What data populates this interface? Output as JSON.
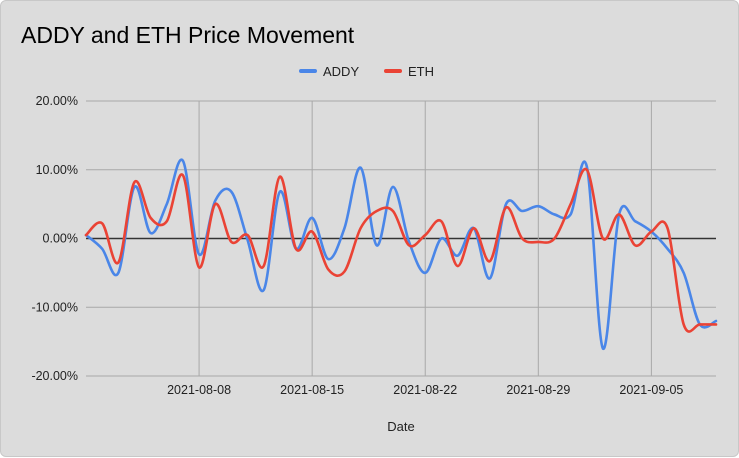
{
  "chart_data": {
    "type": "line",
    "title": "ADDY and ETH Price Movement",
    "xlabel": "Date",
    "ylabel": "",
    "ylim": [
      -20,
      20
    ],
    "yticks": [
      20,
      10,
      0,
      -10,
      -20
    ],
    "ytick_labels": [
      "20.00%",
      "10.00%",
      "0.00%",
      "-10.00%",
      "-20.00%"
    ],
    "x_start": "2021-08-01",
    "x_end": "2021-09-09",
    "xticks": [
      "2021-08-08",
      "2021-08-15",
      "2021-08-22",
      "2021-08-29",
      "2021-09-05"
    ],
    "legend": {
      "position": "top"
    },
    "grid": true,
    "x": [
      "2021-08-01",
      "2021-08-02",
      "2021-08-03",
      "2021-08-04",
      "2021-08-05",
      "2021-08-06",
      "2021-08-07",
      "2021-08-08",
      "2021-08-09",
      "2021-08-10",
      "2021-08-11",
      "2021-08-12",
      "2021-08-13",
      "2021-08-14",
      "2021-08-15",
      "2021-08-16",
      "2021-08-17",
      "2021-08-18",
      "2021-08-19",
      "2021-08-20",
      "2021-08-21",
      "2021-08-22",
      "2021-08-23",
      "2021-08-24",
      "2021-08-25",
      "2021-08-26",
      "2021-08-27",
      "2021-08-28",
      "2021-08-29",
      "2021-08-30",
      "2021-08-31",
      "2021-09-01",
      "2021-09-02",
      "2021-09-03",
      "2021-09-04",
      "2021-09-05",
      "2021-09-06",
      "2021-09-07",
      "2021-09-08",
      "2021-09-09"
    ],
    "series": [
      {
        "name": "ADDY",
        "color": "#4a86e8",
        "values": [
          0.5,
          -1.5,
          -5.0,
          7.5,
          0.8,
          5.0,
          11.3,
          -2.3,
          5.5,
          6.8,
          -0.2,
          -7.5,
          6.8,
          -1.5,
          3.0,
          -3.0,
          1.5,
          10.3,
          -1.0,
          7.5,
          -0.5,
          -5.0,
          0.0,
          -2.5,
          1.5,
          -5.8,
          5.0,
          4.0,
          4.7,
          3.5,
          3.5,
          10.5,
          -16.0,
          3.5,
          2.5,
          1.0,
          -1.5,
          -5.0,
          -12.5,
          -12.0
        ]
      },
      {
        "name": "ETH",
        "color": "#ea4335",
        "values": [
          0.5,
          2.2,
          -3.5,
          8.2,
          3.0,
          2.5,
          9.2,
          -4.2,
          5.0,
          -0.5,
          0.5,
          -4.0,
          9.0,
          -1.5,
          1.0,
          -4.5,
          -4.8,
          1.5,
          4.0,
          4.0,
          -1.0,
          0.5,
          2.5,
          -4.0,
          1.5,
          -3.3,
          4.5,
          0.0,
          -0.5,
          0.0,
          5.0,
          10.0,
          0.0,
          3.5,
          -1.0,
          1.0,
          1.5,
          -12.5,
          -12.5,
          -12.5
        ]
      }
    ]
  }
}
